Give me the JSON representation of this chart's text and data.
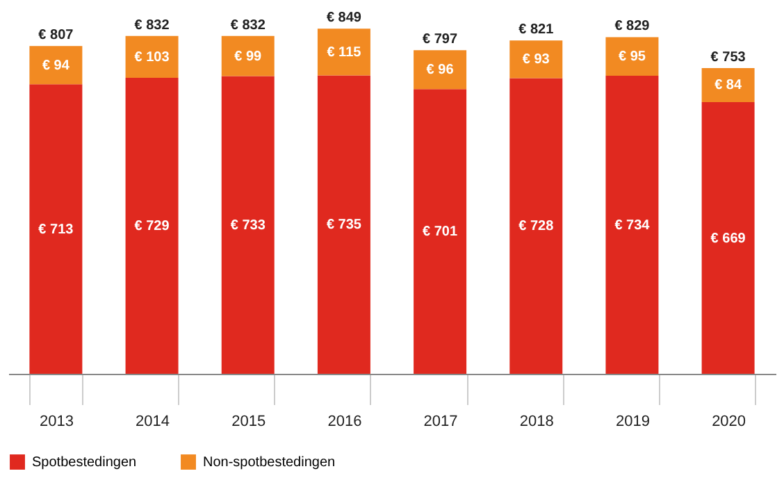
{
  "chart_data": {
    "type": "bar",
    "stacked": true,
    "categories": [
      "2013",
      "2014",
      "2015",
      "2016",
      "2017",
      "2018",
      "2019",
      "2020"
    ],
    "series": [
      {
        "name": "Spotbestedingen",
        "color": "#e0291f",
        "values": [
          713,
          729,
          733,
          735,
          701,
          728,
          734,
          669
        ],
        "value_labels": [
          "€ 713",
          "€ 729",
          "€ 733",
          "€ 735",
          "€ 701",
          "€ 728",
          "€ 734",
          "€ 669"
        ]
      },
      {
        "name": "Non-spotbestedingen",
        "color": "#f28a22",
        "values": [
          94,
          103,
          99,
          115,
          96,
          93,
          95,
          84
        ],
        "value_labels": [
          "€ 94",
          "€ 103",
          "€ 99",
          "€ 115",
          "€ 96",
          "€ 93",
          "€ 95",
          "€ 84"
        ]
      }
    ],
    "totals": [
      "€ 807",
      "€ 832",
      "€ 832",
      "€ 849",
      "€ 797",
      "€ 821",
      "€ 829",
      "€ 753"
    ],
    "legend": "bottom left",
    "tick_labels": "x"
  }
}
